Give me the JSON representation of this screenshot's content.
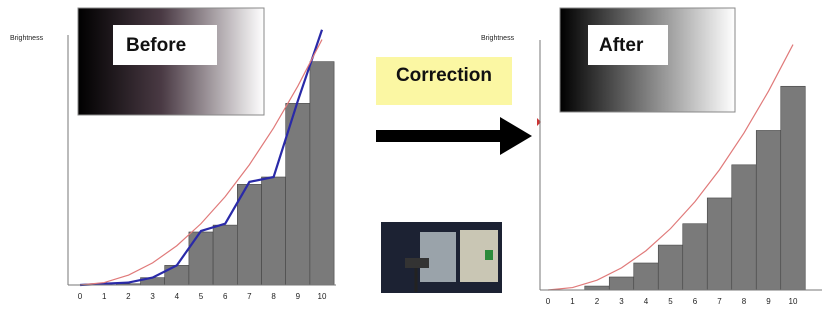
{
  "correction_label": "Correction",
  "chart_data": [
    {
      "type": "bar",
      "panel_label": "Before",
      "y_label": "Brightness",
      "categories": [
        "0",
        "1",
        "2",
        "3",
        "4",
        "5",
        "6",
        "7",
        "8",
        "9",
        "10"
      ],
      "values": [
        0,
        0,
        0.5,
        3,
        8,
        21.6,
        24.4,
        41,
        44,
        74,
        91
      ],
      "color": "#7a7a7a",
      "ylim": [
        0,
        110
      ],
      "lines": [
        {
          "color": "#2a2aa8",
          "values": [
            0,
            0.5,
            1,
            3,
            8,
            22,
            25,
            42,
            44,
            75,
            104
          ]
        },
        {
          "color": "#e07a7a",
          "values": [
            0,
            1,
            4,
            9,
            16,
            25,
            36,
            49,
            64,
            81,
            100
          ]
        }
      ]
    },
    {
      "type": "bar",
      "panel_label": "After",
      "y_label": "Brightness",
      "categories": [
        "0",
        "1",
        "2",
        "3",
        "4",
        "5",
        "6",
        "7",
        "8",
        "9",
        "10"
      ],
      "values": [
        0,
        0,
        1.6,
        5.3,
        11,
        18.3,
        27,
        37.5,
        51,
        65,
        83
      ],
      "color": "#7a7a7a",
      "ylim": [
        0,
        110
      ],
      "lines": [
        {
          "color": "#e07a7a",
          "values": [
            0,
            1,
            4,
            9,
            16,
            25,
            36,
            49,
            64,
            81,
            100
          ]
        }
      ]
    }
  ]
}
